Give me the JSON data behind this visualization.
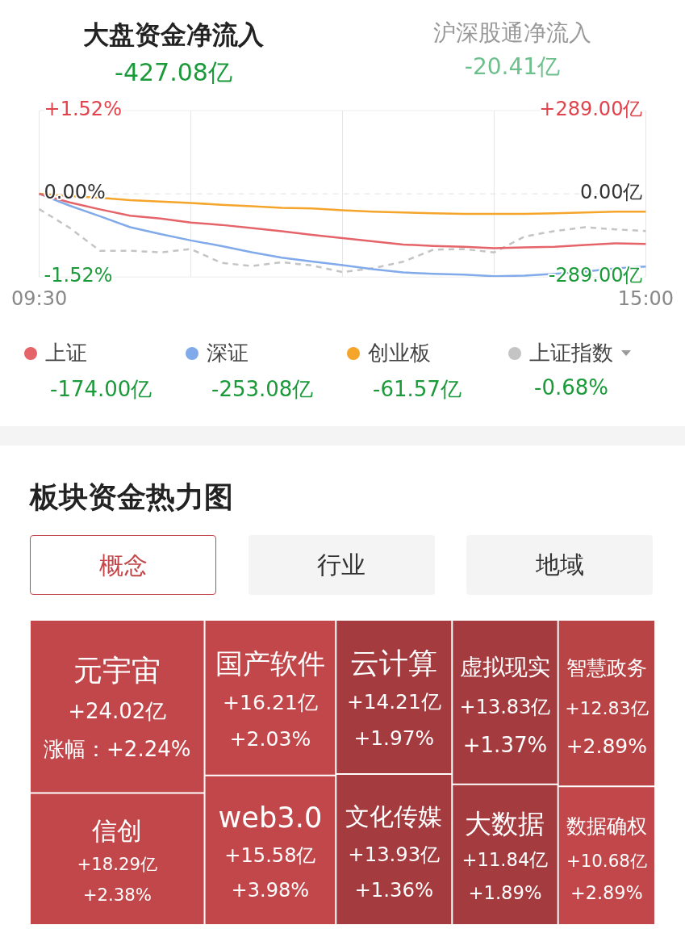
{
  "chart_data": [
    {
      "type": "line",
      "title": "大盘资金净流入",
      "subtitle": "-427.08亿",
      "annotations": [
        "沪深股通净流入",
        "-20.41亿",
        "-174.00亿",
        "-253.08亿",
        "-61.57亿",
        "-0.68%"
      ],
      "categories": [
        "09:30",
        null,
        null,
        null,
        null,
        null,
        null,
        null,
        null,
        null,
        null,
        null,
        null,
        null,
        null,
        null,
        null,
        null,
        null,
        null,
        "15:00"
      ],
      "series": [
        {
          "name": "上证",
          "color": "#e5646a",
          "axis": "y2",
          "values": [
            0,
            -30,
            -54,
            -76,
            -86,
            -100,
            -108,
            -119,
            -130,
            -143,
            -154,
            -165,
            -176,
            -181,
            -184,
            -189,
            -186,
            -184,
            -178,
            -172,
            -174
          ]
        },
        {
          "name": "深证",
          "color": "#80aaea",
          "axis": "y2",
          "values": [
            0,
            -41,
            -78,
            -116,
            -140,
            -162,
            -181,
            -203,
            -222,
            -235,
            -248,
            -262,
            -273,
            -278,
            -281,
            -286,
            -284,
            -278,
            -270,
            -259,
            -253
          ]
        },
        {
          "name": "创业板",
          "color": "#f4a52a",
          "axis": "y2",
          "values": [
            0,
            -8,
            -14,
            -22,
            -27,
            -32,
            -38,
            -43,
            -49,
            -51,
            -57,
            -62,
            -65,
            -68,
            -70,
            -70,
            -70,
            -68,
            -65,
            -62,
            -62
          ]
        },
        {
          "name": "上证指数",
          "color": "#c4c4c4",
          "type": "line",
          "line_style": "dashed",
          "values": [
            -0.28,
            -0.62,
            -1.04,
            -1.04,
            -1.07,
            -1.01,
            -1.26,
            -1.32,
            -1.25,
            -1.31,
            -1.43,
            -1.36,
            -1.24,
            -1.02,
            -1.01,
            -1.07,
            -0.78,
            -0.68,
            -0.61,
            -0.65,
            -0.68
          ]
        }
      ],
      "ylim": [
        -1.52,
        1.52
      ],
      "yticks": [
        {
          "value": 1.52,
          "label": "+1.52%"
        },
        {
          "value": 0,
          "label": "0.00%"
        },
        {
          "value": -1.52,
          "label": "-1.52%"
        }
      ],
      "y2lim": [
        -289,
        289
      ],
      "y2ticks": [
        {
          "value": 289,
          "label": "+289.00亿"
        },
        {
          "value": 0,
          "label": "0.00亿"
        },
        {
          "value": -289,
          "label": "-289.00亿"
        }
      ],
      "ref_lines": [
        {
          "axis": "y",
          "value": 0,
          "color": "#e0e0e0",
          "line_style": "dashed"
        }
      ],
      "grid": "x",
      "legend": "bottom",
      "marker": "none"
    },
    {
      "type": "other",
      "title": "板块资金热力图",
      "annotations": [
        "概念",
        "行业",
        "地域"
      ],
      "categories": [
        "元宇宙",
        "信创",
        "国产软件",
        "web3.0",
        "云计算",
        "文化传媒",
        "虚拟现实",
        "大数据",
        "智慧政务",
        "数据确权"
      ],
      "series": [
        {
          "colors": [
            "#c1474b",
            "#c1474b",
            "#c1474b",
            "#c1474b",
            "#a43b3f",
            "#a43b3f",
            "#a43b3f",
            "#a43b3f",
            "#b94446",
            "#c1474b"
          ],
          "values": [
            24.02,
            18.29,
            16.21,
            15.58,
            14.21,
            13.93,
            13.83,
            11.84,
            12.83,
            10.68
          ],
          "value_labels": [
            "+24.02亿",
            "+18.29亿",
            "+16.21亿",
            "+15.58亿",
            "+14.21亿",
            "+13.93亿",
            "+13.83亿",
            "+11.84亿",
            "+12.83亿",
            "+10.68亿"
          ]
        },
        {
          "values": [
            2.24,
            2.38,
            2.03,
            3.98,
            1.97,
            1.36,
            1.37,
            1.89,
            2.89,
            2.89
          ],
          "value_labels": [
            "涨幅：+2.24%",
            "+2.38%",
            "+2.03%",
            "+3.98%",
            "+1.97%",
            "+1.36%",
            "+1.37%",
            "+1.89%",
            "+2.89%",
            "+2.89%"
          ]
        }
      ]
    }
  ]
}
